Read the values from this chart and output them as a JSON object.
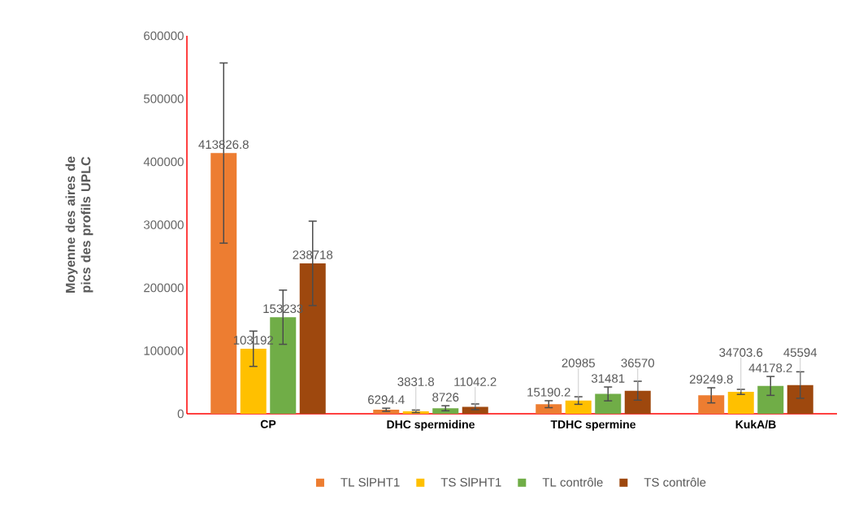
{
  "chart_data": {
    "type": "bar",
    "ylabel": "Moyenne des aires de pics des profils UPLC",
    "categories": [
      "CP",
      "DHC spermidine",
      "TDHC spermine",
      "KukA/B"
    ],
    "series": [
      {
        "name": "TL SlPHT1",
        "color": "#ed7d31",
        "values": [
          413826.8,
          6294.4,
          15190.2,
          29249.8
        ],
        "errors": [
          143000,
          2500,
          5500,
          12000
        ]
      },
      {
        "name": "TS SlPHT1",
        "color": "#ffc000",
        "values": [
          103192,
          3831.8,
          20985,
          34703.6
        ],
        "errors": [
          28000,
          2000,
          6000,
          4000
        ]
      },
      {
        "name": "TL contrôle",
        "color": "#70ad47",
        "values": [
          153233,
          8726,
          31481,
          44178.2
        ],
        "errors": [
          43000,
          4000,
          11000,
          15000
        ]
      },
      {
        "name": "TS contrôle",
        "color": "#9e480e",
        "values": [
          238718,
          11042.2,
          36570,
          45594
        ],
        "errors": [
          67000,
          4500,
          15000,
          21000
        ]
      }
    ],
    "ylim": [
      0,
      600000
    ],
    "yticks": [
      0,
      100000,
      200000,
      300000,
      400000,
      500000,
      600000
    ],
    "data_labels": true,
    "legend": "bottom"
  }
}
